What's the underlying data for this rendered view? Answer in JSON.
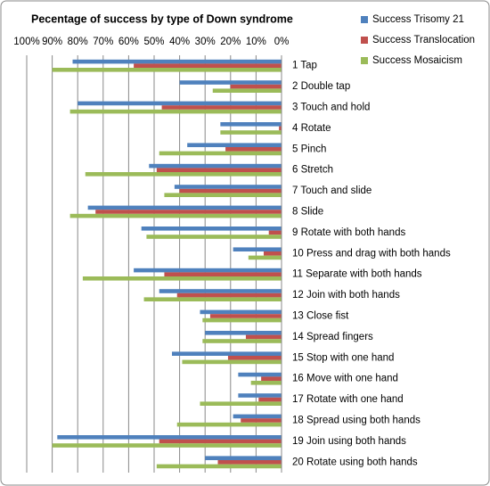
{
  "chart_data": {
    "type": "hbar",
    "title": "Pecentage of success by type of Down syndrome",
    "categories": [
      "1 Tap",
      "2 Double tap",
      "3 Touch and hold",
      "4 Rotate",
      "5 Pinch",
      "6 Stretch",
      "7 Touch and slide",
      "8 Slide",
      "9 Rotate with both hands",
      "10 Press and drag with both hands",
      "11 Separate with both hands",
      "12 Join with both hands",
      "13 Close fist",
      "14 Spread fingers",
      "15 Stop with one hand",
      "16 Move with one hand",
      "17 Rotate with one hand",
      "18 Spread using both hands",
      "19 Join using both hands",
      "20 Rotate using both hands"
    ],
    "series": [
      {
        "name": "Success Trisomy 21",
        "color": "#4f81bd",
        "values": [
          82,
          40,
          80,
          24,
          37,
          52,
          42,
          76,
          55,
          19,
          58,
          48,
          32,
          30,
          43,
          17,
          17,
          19,
          88,
          30
        ]
      },
      {
        "name": "Success Translocation",
        "color": "#c0504d",
        "values": [
          58,
          20,
          47,
          1,
          22,
          49,
          40,
          73,
          5,
          7,
          46,
          41,
          28,
          14,
          21,
          8,
          9,
          16,
          48,
          25
        ]
      },
      {
        "name": "Success Mosaicism",
        "color": "#9bbb59",
        "values": [
          90,
          27,
          83,
          24,
          48,
          77,
          46,
          83,
          53,
          13,
          78,
          54,
          31,
          31,
          39,
          12,
          32,
          41,
          90,
          49
        ]
      }
    ],
    "xlim": [
      0,
      100
    ],
    "x_reversed": true,
    "xticks": [
      {
        "value": 100,
        "label": "100%"
      },
      {
        "value": 90,
        "label": "90%"
      },
      {
        "value": 80,
        "label": "80%"
      },
      {
        "value": 70,
        "label": "70%"
      },
      {
        "value": 60,
        "label": "60%"
      },
      {
        "value": 50,
        "label": "50%"
      },
      {
        "value": 40,
        "label": "40%"
      },
      {
        "value": 30,
        "label": "30%"
      },
      {
        "value": 20,
        "label": "20%"
      },
      {
        "value": 10,
        "label": "10%"
      },
      {
        "value": 0,
        "label": "0%"
      }
    ],
    "grid": true,
    "legend": "top-right"
  }
}
